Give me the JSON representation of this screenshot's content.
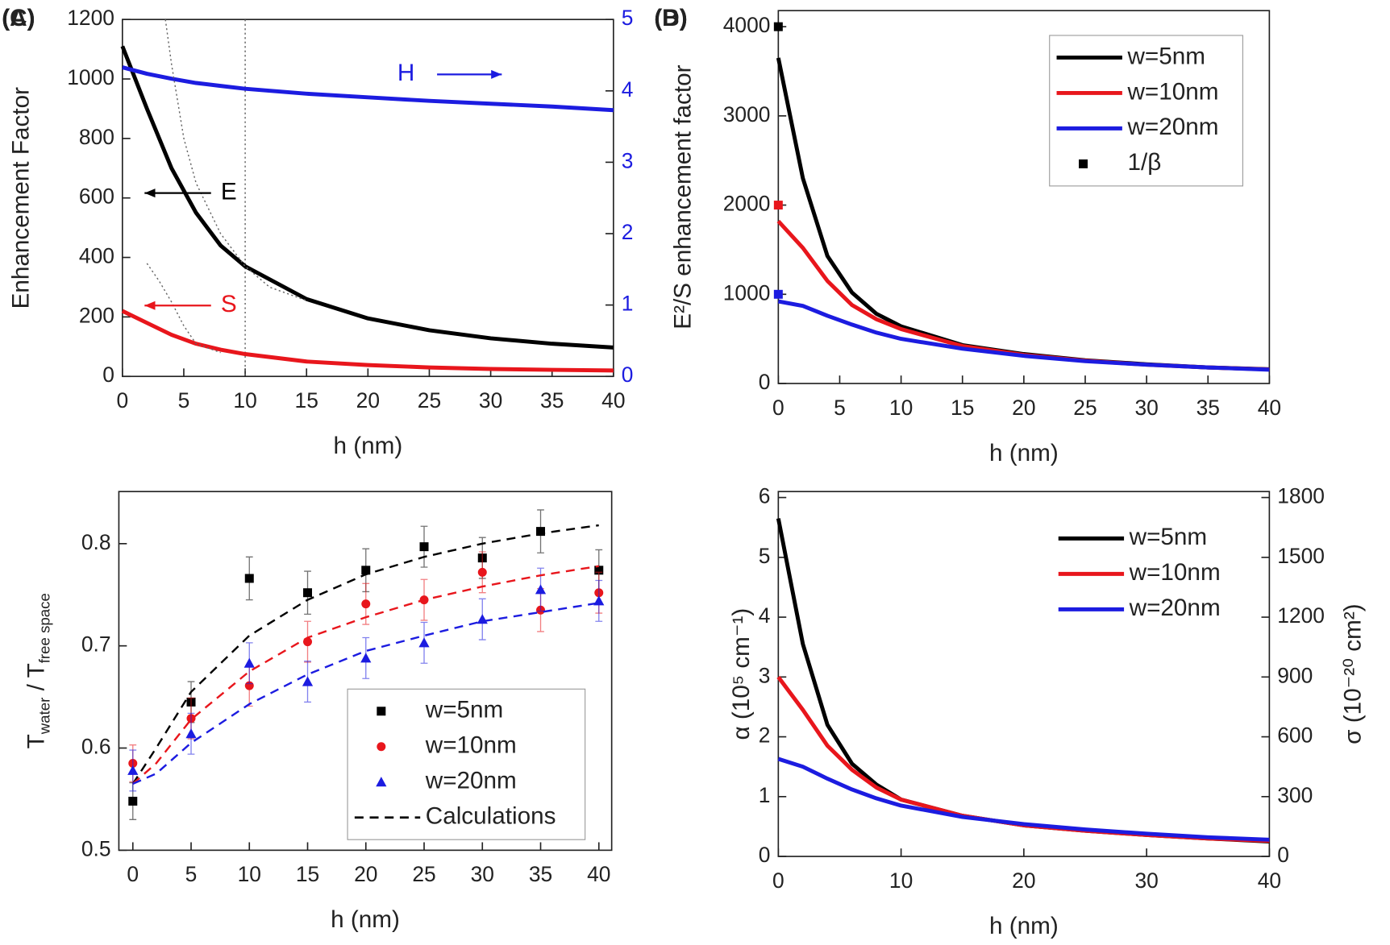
{
  "chart_data": [
    {
      "type": "line",
      "panel": "(A)",
      "xlabel": "h (nm)",
      "ylabel": "Enhancement Factor",
      "xlim": [
        0,
        40
      ],
      "xticks": [
        0,
        5,
        10,
        15,
        20,
        25,
        30,
        35,
        40
      ],
      "ylim": [
        0,
        1200
      ],
      "yticks": [
        0,
        200,
        400,
        600,
        800,
        1000,
        1200
      ],
      "y2lim": [
        0,
        5
      ],
      "y2ticks": [
        0,
        1,
        2,
        3,
        4,
        5
      ],
      "y2color": "#1c1ce0",
      "vlines": [
        10
      ],
      "series_labels": "arrows",
      "x": [
        0,
        2,
        4,
        6,
        8,
        10,
        15,
        20,
        25,
        30,
        35,
        40
      ],
      "series": [
        {
          "name": "E",
          "color": "#000000",
          "values": [
            1110,
            900,
            700,
            550,
            440,
            370,
            260,
            195,
            155,
            128,
            110,
            97
          ]
        },
        {
          "name": "S",
          "color": "#e8161c",
          "values": [
            220,
            180,
            140,
            110,
            90,
            75,
            50,
            38,
            30,
            25,
            22,
            20
          ]
        },
        {
          "name": "H",
          "color": "#1c1ce0",
          "axis": "y2",
          "values": [
            4.33,
            4.24,
            4.17,
            4.11,
            4.07,
            4.03,
            3.96,
            3.91,
            3.86,
            3.82,
            3.78,
            3.73
          ]
        },
        {
          "color": "#666666",
          "dash": "dotted",
          "x": [
            3.5,
            4,
            5,
            6,
            8,
            10,
            12,
            15
          ],
          "values": [
            1200,
            1050,
            800,
            650,
            480,
            370,
            300,
            255
          ]
        },
        {
          "color": "#666666",
          "dash": "dotted",
          "x": [
            2,
            3,
            4,
            5,
            6,
            8
          ],
          "values": [
            380,
            320,
            250,
            170,
            110,
            80
          ]
        }
      ]
    },
    {
      "type": "line",
      "panel": "(B)",
      "xlabel": "h (nm)",
      "ylabel": "E²/S enhancement factor",
      "xlim": [
        0,
        40
      ],
      "xticks": [
        0,
        5,
        10,
        15,
        20,
        25,
        30,
        35,
        40
      ],
      "ylim": [
        0,
        4180
      ],
      "yticks": [
        0,
        1000,
        2000,
        3000,
        4000
      ],
      "legend": "upper right",
      "legend_frame": true,
      "x": [
        0,
        2,
        4,
        6,
        8,
        10,
        15,
        20,
        25,
        30,
        35,
        40
      ],
      "series": [
        {
          "name": "w=5nm",
          "color": "#000000",
          "values": [
            3650,
            2300,
            1430,
            1020,
            780,
            640,
            430,
            330,
            260,
            215,
            180,
            160
          ]
        },
        {
          "name": "w=10nm",
          "color": "#e8161c",
          "values": [
            1820,
            1520,
            1150,
            880,
            720,
            610,
            420,
            320,
            255,
            210,
            180,
            158
          ]
        },
        {
          "name": "w=20nm",
          "color": "#1c1ce0",
          "values": [
            920,
            870,
            760,
            660,
            570,
            500,
            390,
            310,
            250,
            210,
            180,
            155
          ]
        },
        {
          "name": "1/β",
          "color": "#000000",
          "marker": "square",
          "x": [
            0,
            0,
            0
          ],
          "values": [
            4000,
            2000,
            1000
          ],
          "colors": [
            "#000000",
            "#e8161c",
            "#1c1ce0"
          ]
        }
      ]
    },
    {
      "type": "scatter",
      "panel": "(C)",
      "xlabel": "h (nm)",
      "ylabel": [
        "T",
        "water",
        " / T",
        "free space"
      ],
      "xlim": [
        -1.2,
        41.1
      ],
      "xticks": [
        0,
        5,
        10,
        15,
        20,
        25,
        30,
        35,
        40
      ],
      "ylim": [
        0.5,
        0.851
      ],
      "yticks": [
        0.5,
        0.6,
        0.7,
        0.8
      ],
      "legend": "lower right",
      "legend_frame": true,
      "x": [
        0,
        5,
        10,
        15,
        20,
        25,
        30,
        35,
        40
      ],
      "series": [
        {
          "name": "w=5nm",
          "color": "#000000",
          "marker": "square",
          "values": [
            0.548,
            0.645,
            0.766,
            0.752,
            0.774,
            0.797,
            0.786,
            0.812,
            0.774
          ],
          "errors": [
            0.018,
            0.02,
            0.021,
            0.021,
            0.021,
            0.02,
            0.02,
            0.021,
            0.02
          ]
        },
        {
          "name": "w=10nm",
          "color": "#e8161c",
          "marker": "circle",
          "values": [
            0.585,
            0.629,
            0.661,
            0.704,
            0.741,
            0.745,
            0.772,
            0.735,
            0.752
          ],
          "errors": [
            0.018,
            0.02,
            0.02,
            0.02,
            0.02,
            0.02,
            0.02,
            0.021,
            0.02
          ]
        },
        {
          "name": "w=20nm",
          "color": "#1c1ce0",
          "marker": "triangle",
          "values": [
            0.578,
            0.614,
            0.683,
            0.665,
            0.688,
            0.703,
            0.726,
            0.755,
            0.744
          ],
          "errors": [
            0.02,
            0.02,
            0.02,
            0.02,
            0.02,
            0.02,
            0.02,
            0.021,
            0.02
          ]
        },
        {
          "name": "Calculations",
          "color": "#000000",
          "dash": "dashed",
          "x": [
            0,
            2,
            5,
            10,
            15,
            20,
            25,
            30,
            35,
            40
          ],
          "values": [
            0.565,
            0.6,
            0.655,
            0.71,
            0.745,
            0.77,
            0.787,
            0.8,
            0.81,
            0.818
          ]
        },
        {
          "color": "#e8161c",
          "dash": "dashed",
          "x": [
            0,
            2,
            5,
            10,
            15,
            20,
            25,
            30,
            35,
            40
          ],
          "values": [
            0.565,
            0.585,
            0.628,
            0.675,
            0.708,
            0.728,
            0.745,
            0.758,
            0.769,
            0.778
          ]
        },
        {
          "color": "#1c1ce0",
          "dash": "dashed",
          "x": [
            0,
            2,
            5,
            10,
            15,
            20,
            25,
            30,
            35,
            40
          ],
          "values": [
            0.565,
            0.575,
            0.605,
            0.643,
            0.672,
            0.695,
            0.71,
            0.724,
            0.733,
            0.742
          ]
        }
      ]
    },
    {
      "type": "line",
      "panel": "(D)",
      "xlabel": "h (nm)",
      "ylabel": "α (10⁵ cm⁻¹)",
      "y2label": "σ (10⁻²⁰ cm²)",
      "xlim": [
        0,
        40
      ],
      "xticks": [
        0,
        10,
        20,
        30,
        40
      ],
      "ylim": [
        0,
        6.1
      ],
      "yticks": [
        0,
        1,
        2,
        3,
        4,
        5,
        6
      ],
      "y2lim": [
        0,
        1830
      ],
      "y2ticks": [
        0,
        300,
        600,
        900,
        1200,
        1500,
        1800
      ],
      "y2color": "#222222",
      "legend": "upper right",
      "x": [
        0,
        2,
        4,
        6,
        8,
        10,
        15,
        20,
        25,
        30,
        35,
        40
      ],
      "series": [
        {
          "name": "w=5nm",
          "color": "#000000",
          "values": [
            5.65,
            3.55,
            2.2,
            1.55,
            1.2,
            0.95,
            0.68,
            0.52,
            0.43,
            0.36,
            0.3,
            0.25
          ]
        },
        {
          "name": "w=10nm",
          "color": "#e8161c",
          "values": [
            3.0,
            2.45,
            1.85,
            1.45,
            1.15,
            0.95,
            0.68,
            0.52,
            0.43,
            0.36,
            0.3,
            0.26
          ]
        },
        {
          "name": "w=20nm",
          "color": "#1c1ce0",
          "values": [
            1.63,
            1.5,
            1.3,
            1.12,
            0.97,
            0.85,
            0.66,
            0.54,
            0.45,
            0.38,
            0.32,
            0.28
          ]
        }
      ]
    }
  ]
}
